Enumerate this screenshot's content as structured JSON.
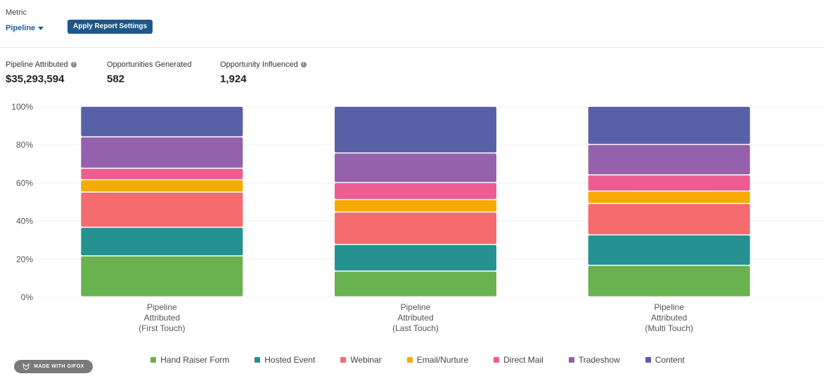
{
  "header": {
    "metric_label": "Metric",
    "metric_value": "Pipeline",
    "apply_button": "Apply Report Settings"
  },
  "kpis": [
    {
      "label": "Pipeline Attributed",
      "value": "$35,293,594",
      "has_info": true
    },
    {
      "label": "Opportunities Generated",
      "value": "582",
      "has_info": false
    },
    {
      "label": "Opportunity Influenced",
      "value": "1,924",
      "has_info": true
    }
  ],
  "watermark": "MADE WITH GIFOX",
  "chart_data": {
    "type": "bar",
    "stacked": true,
    "ylim": [
      0,
      100
    ],
    "yticks": [
      "0%",
      "20%",
      "40%",
      "60%",
      "80%",
      "100%"
    ],
    "categories": [
      [
        "Pipeline",
        "Attributed",
        "(First Touch)"
      ],
      [
        "Pipeline",
        "Attributed",
        "(Last Touch)"
      ],
      [
        "Pipeline",
        "Attributed",
        "(Multi Touch)"
      ]
    ],
    "series": [
      {
        "name": "Hand Raiser Form",
        "color": "#6ab150",
        "values": [
          21.5,
          13.5,
          16.5
        ]
      },
      {
        "name": "Hosted Event",
        "color": "#259190",
        "values": [
          15,
          14,
          16
        ]
      },
      {
        "name": "Webinar",
        "color": "#f56b6e",
        "values": [
          18.5,
          17,
          16.5
        ]
      },
      {
        "name": "Email/Nurture",
        "color": "#f7ab00",
        "values": [
          6.5,
          6.5,
          6.5
        ]
      },
      {
        "name": "Direct Mail",
        "color": "#ee5d91",
        "values": [
          6,
          9,
          8.5
        ]
      },
      {
        "name": "Tradeshow",
        "color": "#9462ad",
        "values": [
          16.5,
          15.5,
          16
        ]
      },
      {
        "name": "Content",
        "color": "#5861a7",
        "values": [
          16,
          24.5,
          20
        ]
      }
    ],
    "grid": true,
    "legend_position": "bottom"
  }
}
